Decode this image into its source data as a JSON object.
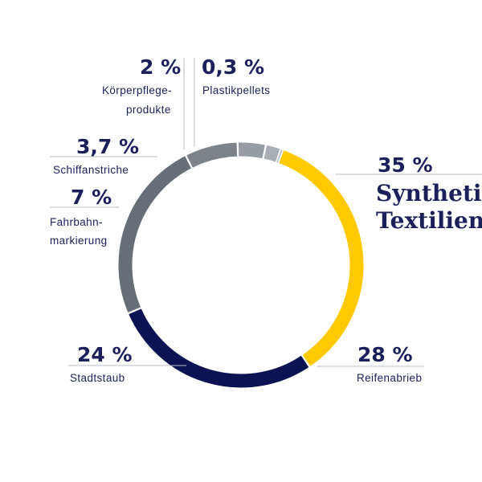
{
  "chart_data": {
    "type": "pie",
    "slices": [
      {
        "value": 35,
        "value_label": "35 %",
        "label_lines": [
          "Synthetis",
          "Textilien"
        ],
        "color": "#ffc900"
      },
      {
        "value": 28,
        "value_label": "28 %",
        "label_lines": [
          "Reifenabrieb"
        ],
        "color": "#0b1353"
      },
      {
        "value": 24,
        "value_label": "24 %",
        "label_lines": [
          "Stadtstaub"
        ],
        "color": "#676e77"
      },
      {
        "value": 7,
        "value_label": "7 %",
        "label_lines": [
          "Fahrbahn-",
          "markierung"
        ],
        "color": "#7d8289"
      },
      {
        "value": 3.7,
        "value_label": "3,7 %",
        "label_lines": [
          "Schiffanstriche"
        ],
        "color": "#979ca3"
      },
      {
        "value": 2,
        "value_label": "2 %",
        "label_lines": [
          "Körperpflege-",
          "produkte"
        ],
        "color": "#a9aeb5"
      },
      {
        "value": 0.3,
        "value_label": "0,3 %",
        "label_lines": [
          "Plastikpellets"
        ],
        "color": "#c3c7cc"
      }
    ]
  }
}
